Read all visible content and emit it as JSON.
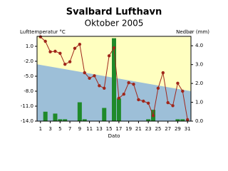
{
  "chart_data": {
    "type": "combo",
    "title": "Svalbard Lufthavn",
    "subtitle": "Oktober 2005",
    "y_label": "Lufttemperatur °C",
    "y2_label": "Nedbør (mm)",
    "x_label": "Dato",
    "x": [
      1,
      2,
      3,
      4,
      5,
      6,
      7,
      8,
      9,
      10,
      11,
      12,
      13,
      14,
      15,
      16,
      17,
      18,
      19,
      20,
      21,
      22,
      23,
      24,
      25,
      26,
      27,
      28,
      29,
      30,
      31
    ],
    "xlim": [
      0.3,
      31.7
    ],
    "xticks": [
      1,
      3,
      5,
      7,
      9,
      11,
      13,
      15,
      17,
      19,
      21,
      23,
      25,
      27,
      29,
      31
    ],
    "ylim": [
      -14,
      3
    ],
    "yticks": [
      {
        "value": 1,
        "label": "1.0"
      },
      {
        "value": -2,
        "label": "-2.0"
      },
      {
        "value": -5,
        "label": "-5.0"
      },
      {
        "value": -8,
        "label": "-8.0"
      },
      {
        "value": -11,
        "label": "-11.0"
      },
      {
        "value": -14,
        "label": "-14.0"
      }
    ],
    "y2lim": [
      0,
      4.5
    ],
    "y2ticks": [
      {
        "value": 0,
        "label": "0.0"
      },
      {
        "value": 1,
        "label": "1.0"
      },
      {
        "value": 2,
        "label": "2.0"
      },
      {
        "value": 3,
        "label": "3.0"
      },
      {
        "value": 4,
        "label": "4.0"
      }
    ],
    "background": "#ffffc0",
    "series": [
      {
        "type": "area",
        "color": "#9dbfd8",
        "x": [
          0.3,
          31.7
        ],
        "values": [
          -2.6,
          -8.0
        ]
      },
      {
        "type": "bar",
        "axis": "y2",
        "color": "#1f8a2a",
        "values": [
          0,
          0.5,
          0,
          0.4,
          0.1,
          0.1,
          0,
          0,
          1.0,
          0.1,
          0,
          0,
          0,
          0.7,
          0,
          4.4,
          1.2,
          0,
          0,
          0,
          0,
          0,
          0.1,
          0.6,
          0,
          0,
          0,
          0,
          0.1,
          0.1,
          0
        ]
      },
      {
        "type": "line",
        "color": "#a0261a",
        "values": [
          2.9,
          2.0,
          -0.1,
          0.0,
          -0.4,
          -2.6,
          -2.1,
          0.6,
          1.4,
          -4.3,
          -5.4,
          -4.9,
          -6.9,
          -7.4,
          -0.9,
          0.7,
          -9.4,
          -8.6,
          -6.3,
          -6.6,
          -9.7,
          -10.0,
          -10.4,
          -12.9,
          -7.4,
          -4.3,
          -10.3,
          -10.9,
          -6.4,
          -8.0,
          -13.7
        ]
      }
    ]
  }
}
